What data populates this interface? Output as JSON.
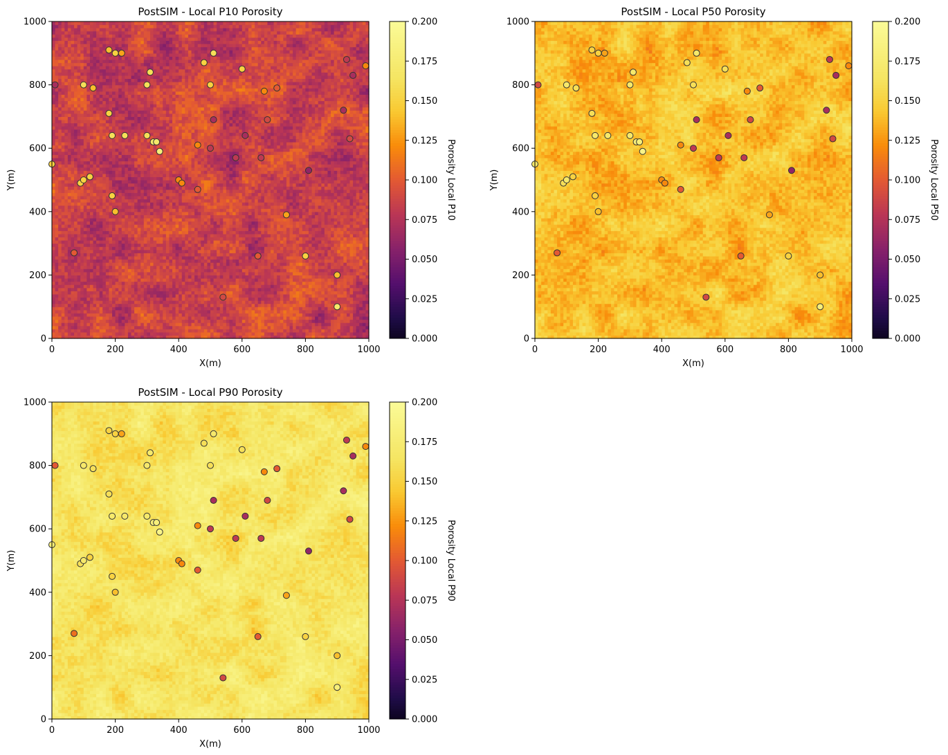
{
  "chart_data": [
    {
      "type": "heatmap",
      "title": "PostSIM - Local P10 Porosity",
      "xlabel": "X(m)",
      "ylabel": "Y(m)",
      "colorbar_label": "Porosity Local P10",
      "xlim": [
        0,
        1000
      ],
      "ylim": [
        0,
        1000
      ],
      "vlim": [
        0,
        0.2
      ],
      "colormap": "inferno",
      "xticks": [
        "0",
        "200",
        "400",
        "600",
        "800",
        "1000"
      ],
      "yticks": [
        "0",
        "200",
        "400",
        "600",
        "800",
        "1000"
      ],
      "cbticks": [
        "0.000",
        "0.025",
        "0.050",
        "0.075",
        "0.100",
        "0.125",
        "0.150",
        "0.175",
        "0.200"
      ],
      "field_base": 0.085,
      "field_spread": 0.03
    },
    {
      "type": "heatmap",
      "title": "PostSIM - Local P50 Porosity",
      "xlabel": "X(m)",
      "ylabel": "Y(m)",
      "colorbar_label": "Porosity Local P50",
      "xlim": [
        0,
        1000
      ],
      "ylim": [
        0,
        1000
      ],
      "vlim": [
        0,
        0.2
      ],
      "colormap": "inferno",
      "xticks": [
        "0",
        "200",
        "400",
        "600",
        "800",
        "1000"
      ],
      "yticks": [
        "0",
        "200",
        "400",
        "600",
        "800",
        "1000"
      ],
      "cbticks": [
        "0.000",
        "0.025",
        "0.050",
        "0.075",
        "0.100",
        "0.125",
        "0.150",
        "0.175",
        "0.200"
      ],
      "field_base": 0.14,
      "field_spread": 0.025
    },
    {
      "type": "heatmap",
      "title": "PostSIM - Local P90 Porosity",
      "xlabel": "X(m)",
      "ylabel": "Y(m)",
      "colorbar_label": "Porosity Local P90",
      "xlim": [
        0,
        1000
      ],
      "ylim": [
        0,
        1000
      ],
      "vlim": [
        0,
        0.2
      ],
      "colormap": "inferno",
      "xticks": [
        "0",
        "200",
        "400",
        "600",
        "800",
        "1000"
      ],
      "yticks": [
        "0",
        "200",
        "400",
        "600",
        "800",
        "1000"
      ],
      "cbticks": [
        "0.000",
        "0.025",
        "0.050",
        "0.075",
        "0.100",
        "0.125",
        "0.150",
        "0.175",
        "0.200"
      ],
      "field_base": 0.165,
      "field_spread": 0.025
    }
  ],
  "wells": [
    {
      "x": 10,
      "y": 800,
      "p10": 0.07,
      "p50": 0.09,
      "p90": 0.1
    },
    {
      "x": 0,
      "y": 550,
      "p10": 0.15,
      "p50": 0.17,
      "p90": 0.18
    },
    {
      "x": 70,
      "y": 270,
      "p10": 0.1,
      "p50": 0.1,
      "p90": 0.11
    },
    {
      "x": 90,
      "y": 490,
      "p10": 0.15,
      "p50": 0.16,
      "p90": 0.16
    },
    {
      "x": 100,
      "y": 500,
      "p10": 0.15,
      "p50": 0.17,
      "p90": 0.17
    },
    {
      "x": 100,
      "y": 800,
      "p10": 0.16,
      "p50": 0.17,
      "p90": 0.17
    },
    {
      "x": 120,
      "y": 510,
      "p10": 0.15,
      "p50": 0.15,
      "p90": 0.15
    },
    {
      "x": 130,
      "y": 790,
      "p10": 0.14,
      "p50": 0.16,
      "p90": 0.16
    },
    {
      "x": 180,
      "y": 910,
      "p10": 0.14,
      "p50": 0.15,
      "p90": 0.15
    },
    {
      "x": 180,
      "y": 710,
      "p10": 0.15,
      "p50": 0.16,
      "p90": 0.16
    },
    {
      "x": 190,
      "y": 640,
      "p10": 0.16,
      "p50": 0.17,
      "p90": 0.17
    },
    {
      "x": 190,
      "y": 450,
      "p10": 0.15,
      "p50": 0.15,
      "p90": 0.15
    },
    {
      "x": 200,
      "y": 900,
      "p10": 0.15,
      "p50": 0.15,
      "p90": 0.15
    },
    {
      "x": 200,
      "y": 400,
      "p10": 0.14,
      "p50": 0.14,
      "p90": 0.14
    },
    {
      "x": 220,
      "y": 900,
      "p10": 0.13,
      "p50": 0.13,
      "p90": 0.13
    },
    {
      "x": 230,
      "y": 640,
      "p10": 0.16,
      "p50": 0.17,
      "p90": 0.17
    },
    {
      "x": 300,
      "y": 800,
      "p10": 0.16,
      "p50": 0.17,
      "p90": 0.17
    },
    {
      "x": 300,
      "y": 640,
      "p10": 0.16,
      "p50": 0.17,
      "p90": 0.17
    },
    {
      "x": 310,
      "y": 840,
      "p10": 0.16,
      "p50": 0.17,
      "p90": 0.17
    },
    {
      "x": 320,
      "y": 620,
      "p10": 0.17,
      "p50": 0.18,
      "p90": 0.18
    },
    {
      "x": 330,
      "y": 620,
      "p10": 0.17,
      "p50": 0.18,
      "p90": 0.18
    },
    {
      "x": 340,
      "y": 590,
      "p10": 0.18,
      "p50": 0.19,
      "p90": 0.19
    },
    {
      "x": 400,
      "y": 500,
      "p10": 0.12,
      "p50": 0.12,
      "p90": 0.12
    },
    {
      "x": 410,
      "y": 490,
      "p10": 0.12,
      "p50": 0.12,
      "p90": 0.12
    },
    {
      "x": 460,
      "y": 610,
      "p10": 0.12,
      "p50": 0.12,
      "p90": 0.12
    },
    {
      "x": 460,
      "y": 470,
      "p10": 0.1,
      "p50": 0.1,
      "p90": 0.1
    },
    {
      "x": 480,
      "y": 870,
      "p10": 0.15,
      "p50": 0.16,
      "p90": 0.16
    },
    {
      "x": 500,
      "y": 800,
      "p10": 0.15,
      "p50": 0.16,
      "p90": 0.16
    },
    {
      "x": 500,
      "y": 600,
      "p10": 0.08,
      "p50": 0.08,
      "p90": 0.08
    },
    {
      "x": 510,
      "y": 900,
      "p10": 0.16,
      "p50": 0.17,
      "p90": 0.17
    },
    {
      "x": 510,
      "y": 690,
      "p10": 0.07,
      "p50": 0.07,
      "p90": 0.07
    },
    {
      "x": 540,
      "y": 130,
      "p10": 0.09,
      "p50": 0.09,
      "p90": 0.09
    },
    {
      "x": 580,
      "y": 570,
      "p10": 0.08,
      "p50": 0.08,
      "p90": 0.08
    },
    {
      "x": 600,
      "y": 850,
      "p10": 0.15,
      "p50": 0.16,
      "p90": 0.16
    },
    {
      "x": 610,
      "y": 640,
      "p10": 0.07,
      "p50": 0.07,
      "p90": 0.07
    },
    {
      "x": 650,
      "y": 260,
      "p10": 0.1,
      "p50": 0.1,
      "p90": 0.1
    },
    {
      "x": 660,
      "y": 570,
      "p10": 0.08,
      "p50": 0.08,
      "p90": 0.08
    },
    {
      "x": 670,
      "y": 780,
      "p10": 0.12,
      "p50": 0.12,
      "p90": 0.12
    },
    {
      "x": 680,
      "y": 690,
      "p10": 0.09,
      "p50": 0.09,
      "p90": 0.09
    },
    {
      "x": 710,
      "y": 790,
      "p10": 0.1,
      "p50": 0.1,
      "p90": 0.1
    },
    {
      "x": 740,
      "y": 390,
      "p10": 0.13,
      "p50": 0.13,
      "p90": 0.13
    },
    {
      "x": 800,
      "y": 260,
      "p10": 0.15,
      "p50": 0.15,
      "p90": 0.15
    },
    {
      "x": 810,
      "y": 530,
      "p10": 0.06,
      "p50": 0.06,
      "p90": 0.06
    },
    {
      "x": 900,
      "y": 200,
      "p10": 0.14,
      "p50": 0.14,
      "p90": 0.14
    },
    {
      "x": 900,
      "y": 100,
      "p10": 0.17,
      "p50": 0.18,
      "p90": 0.18
    },
    {
      "x": 920,
      "y": 720,
      "p10": 0.07,
      "p50": 0.07,
      "p90": 0.07
    },
    {
      "x": 930,
      "y": 880,
      "p10": 0.08,
      "p50": 0.08,
      "p90": 0.08
    },
    {
      "x": 940,
      "y": 630,
      "p10": 0.09,
      "p50": 0.09,
      "p90": 0.09
    },
    {
      "x": 950,
      "y": 830,
      "p10": 0.07,
      "p50": 0.07,
      "p90": 0.07
    },
    {
      "x": 990,
      "y": 860,
      "p10": 0.12,
      "p50": 0.12,
      "p90": 0.12
    }
  ],
  "colors": {
    "marker_edge": "#333333",
    "background": "#ffffff"
  }
}
